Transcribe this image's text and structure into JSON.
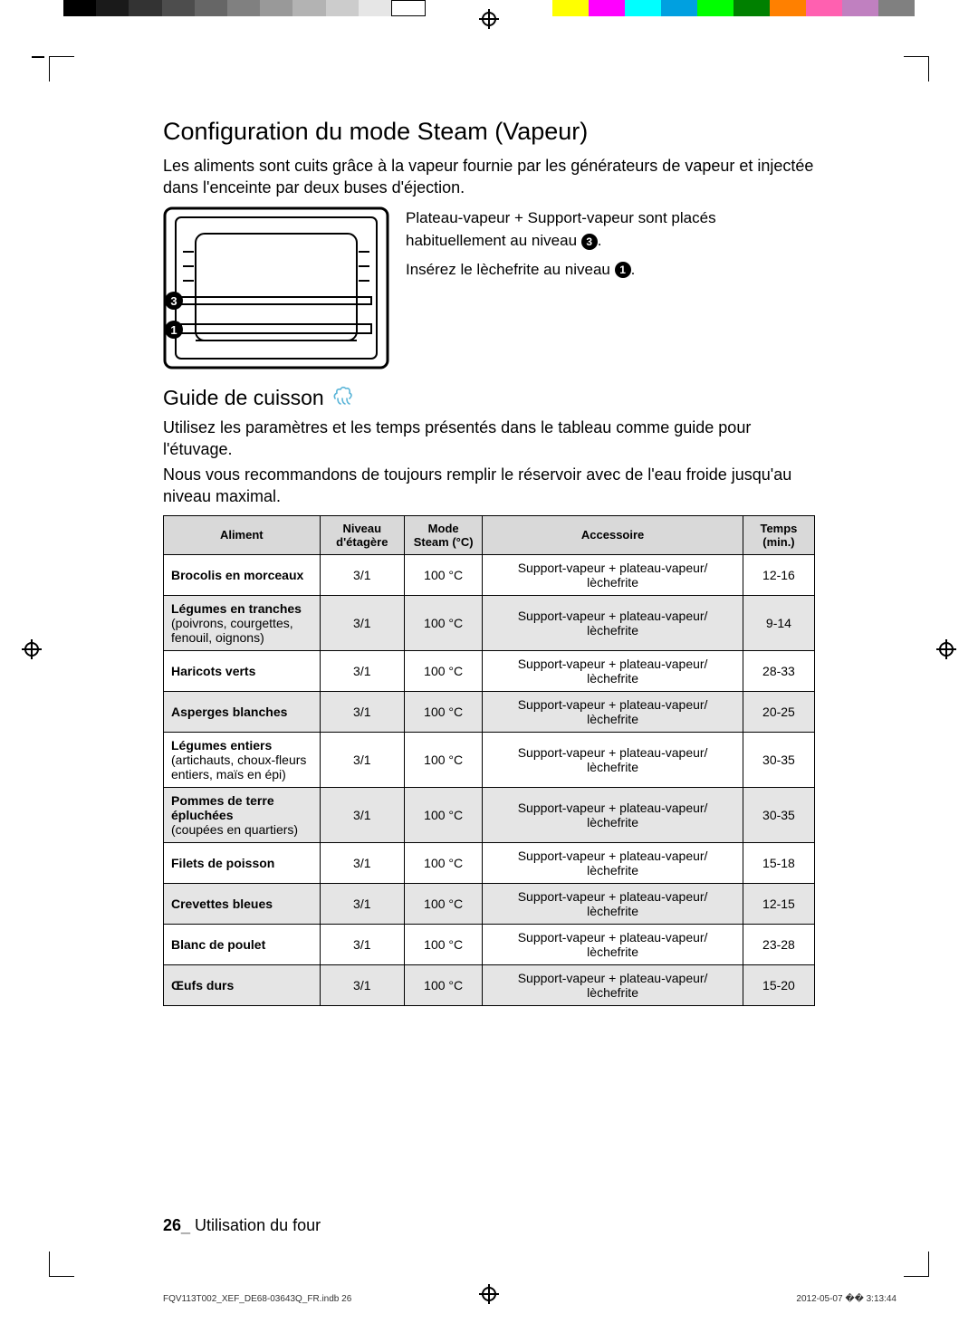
{
  "topbar_left_colors": [
    "#000000",
    "#1a1a1a",
    "#333333",
    "#4d4d4d",
    "#666666",
    "#808080",
    "#999999",
    "#b3b3b3",
    "#cccccc",
    "#e6e6e6",
    "#ffffff"
  ],
  "topbar_right_colors": [
    "#ffff00",
    "#ff00ff",
    "#00ffff",
    "#00a0e0",
    "#00ff00",
    "#008000",
    "#ff8000",
    "#ff60b0",
    "#c080c0",
    "#808080"
  ],
  "h1": "Configuration du mode Steam (Vapeur)",
  "intro": "Les aliments sont cuits grâce à la vapeur fournie par les générateurs de vapeur et injectée dans l'enceinte par deux buses d'éjection.",
  "fig_line1a": "Plateau-vapeur + Support-vapeur sont placés habituellement au niveau ",
  "fig_line1b": ".",
  "fig_num1": "3",
  "fig_line2a": "Insérez le lèchefrite au niveau ",
  "fig_line2b": ".",
  "fig_num2": "1",
  "h2": "Guide de cuisson",
  "sub1": "Utilisez les paramètres et les temps présentés dans le tableau comme guide pour l'étuvage.",
  "sub2": "Nous vous recommandons de toujours remplir le réservoir avec de l'eau froide jusqu'au niveau maximal.",
  "table": {
    "headers": [
      "Aliment",
      "Niveau d'étagère",
      "Mode Steam (°C)",
      "Accessoire",
      "Temps (min.)"
    ],
    "rows": [
      {
        "food_bold": "Brocolis en morceaux",
        "food_note": "",
        "level": "3/1",
        "mode": "100 °C",
        "acc": "Support-vapeur + plateau-vapeur/\nlèchefrite",
        "time": "12-16",
        "shade": false
      },
      {
        "food_bold": "Légumes en tranches",
        "food_note": "(poivrons, courgettes, fenouil, oignons)",
        "level": "3/1",
        "mode": "100 °C",
        "acc": "Support-vapeur + plateau-vapeur/\nlèchefrite",
        "time": "9-14",
        "shade": true
      },
      {
        "food_bold": "Haricots verts",
        "food_note": "",
        "level": "3/1",
        "mode": "100 °C",
        "acc": "Support-vapeur + plateau-vapeur/\nlèchefrite",
        "time": "28-33",
        "shade": false
      },
      {
        "food_bold": "Asperges blanches",
        "food_note": "",
        "level": "3/1",
        "mode": "100 °C",
        "acc": "Support-vapeur + plateau-vapeur/\nlèchefrite",
        "time": "20-25",
        "shade": true
      },
      {
        "food_bold": "Légumes entiers",
        "food_note": "(artichauts, choux-fleurs entiers, maïs en épi)",
        "level": "3/1",
        "mode": "100 °C",
        "acc": "Support-vapeur + plateau-vapeur/\nlèchefrite",
        "time": "30-35",
        "shade": false
      },
      {
        "food_bold": "Pommes de terre épluchées",
        "food_note": "(coupées en quartiers)",
        "level": "3/1",
        "mode": "100 °C",
        "acc": "Support-vapeur + plateau-vapeur/\nlèchefrite",
        "time": "30-35",
        "shade": true
      },
      {
        "food_bold": "Filets de poisson",
        "food_note": "",
        "level": "3/1",
        "mode": "100 °C",
        "acc": "Support-vapeur + plateau-vapeur/\nlèchefrite",
        "time": "15-18",
        "shade": false
      },
      {
        "food_bold": "Crevettes bleues",
        "food_note": "",
        "level": "3/1",
        "mode": "100 °C",
        "acc": "Support-vapeur + plateau-vapeur/\nlèchefrite",
        "time": "12-15",
        "shade": true
      },
      {
        "food_bold": "Blanc de poulet",
        "food_note": "",
        "level": "3/1",
        "mode": "100 °C",
        "acc": "Support-vapeur + plateau-vapeur/\nlèchefrite",
        "time": "23-28",
        "shade": false
      },
      {
        "food_bold": "Œufs durs",
        "food_note": "",
        "level": "3/1",
        "mode": "100 °C",
        "acc": "Support-vapeur + plateau-vapeur/\nlèchefrite",
        "time": "15-20",
        "shade": true
      }
    ]
  },
  "footer_page": "26",
  "footer_sep": "_",
  "footer_section": " Utilisation du four",
  "meta_left": "FQV113T002_XEF_DE68-03643Q_FR.indb   26",
  "meta_right": "2012-05-07   �� 3:13:44"
}
